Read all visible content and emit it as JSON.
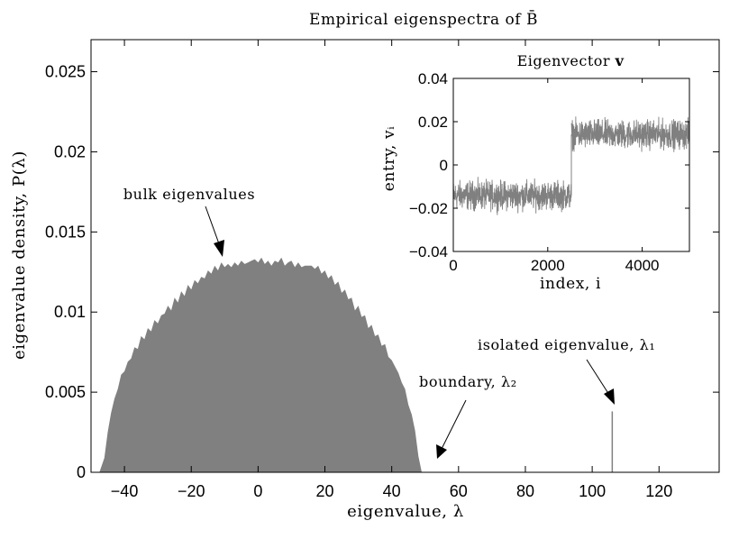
{
  "chart_data": [
    {
      "type": "area",
      "title": "Empirical eigenspectra of B̄",
      "xlabel": "eigenvalue, λ",
      "ylabel": "eigenvalue density,  P(λ)",
      "xlim": [
        -50,
        138
      ],
      "ylim": [
        0,
        0.027
      ],
      "xticks": [
        -40,
        -20,
        0,
        20,
        40,
        60,
        80,
        100,
        120
      ],
      "xtick_labels": [
        "−40",
        "−20",
        "0",
        "20",
        "40",
        "60",
        "80",
        "100",
        "120"
      ],
      "yticks": [
        0,
        0.005,
        0.01,
        0.015,
        0.02,
        0.025
      ],
      "ytick_labels": [
        "0",
        "0.005",
        "0.01",
        "0.015",
        "0.02",
        "0.025"
      ],
      "grid": false,
      "color": "#808080",
      "series": [
        {
          "x": [
            -47.5,
            -46,
            -45,
            -44,
            -43,
            -42,
            -41,
            -40,
            -39,
            -38,
            -37,
            -36,
            -35,
            -34,
            -33,
            -32,
            -31,
            -30,
            -29,
            -28,
            -27,
            -26,
            -25,
            -24,
            -23,
            -22,
            -21,
            -20,
            -19,
            -18,
            -17,
            -16,
            -15,
            -14,
            -13,
            -12,
            -11,
            -10,
            -9,
            -8,
            -7,
            -6,
            -5,
            -4,
            -3,
            -2,
            -1,
            0,
            1,
            2,
            3,
            4,
            5,
            6,
            7,
            8,
            9,
            10,
            11,
            12,
            13,
            14,
            15,
            16,
            17,
            18,
            19,
            20,
            21,
            22,
            23,
            24,
            25,
            26,
            27,
            28,
            29,
            30,
            31,
            32,
            33,
            34,
            35,
            36,
            37,
            38,
            39,
            40,
            41,
            42,
            43,
            44,
            45,
            46,
            47,
            48,
            49
          ],
          "y": [
            0,
            0.0009,
            0.0025,
            0.0037,
            0.0046,
            0.0052,
            0.0061,
            0.0063,
            0.0069,
            0.0071,
            0.0078,
            0.0077,
            0.0085,
            0.0083,
            0.009,
            0.0088,
            0.0095,
            0.0093,
            0.0098,
            0.0099,
            0.0104,
            0.0101,
            0.0109,
            0.0106,
            0.0113,
            0.011,
            0.0117,
            0.0114,
            0.012,
            0.0118,
            0.0122,
            0.0121,
            0.0126,
            0.0124,
            0.0129,
            0.0126,
            0.0131,
            0.0128,
            0.013,
            0.0128,
            0.0131,
            0.0129,
            0.0132,
            0.013,
            0.0131,
            0.0132,
            0.0133,
            0.0131,
            0.0134,
            0.013,
            0.0132,
            0.0129,
            0.0132,
            0.0131,
            0.0134,
            0.0129,
            0.0131,
            0.0132,
            0.0128,
            0.0131,
            0.0128,
            0.0129,
            0.0129,
            0.0129,
            0.0127,
            0.0129,
            0.0124,
            0.0126,
            0.0121,
            0.0123,
            0.0117,
            0.0119,
            0.0112,
            0.0114,
            0.0108,
            0.0109,
            0.0101,
            0.0104,
            0.0097,
            0.0098,
            0.009,
            0.0092,
            0.0085,
            0.0086,
            0.0079,
            0.008,
            0.0072,
            0.007,
            0.0066,
            0.0062,
            0.0056,
            0.0052,
            0.0042,
            0.0036,
            0.0026,
            0.001,
            0
          ]
        }
      ],
      "isolated_eigenvalue": {
        "x": 106,
        "height": 0.0038
      },
      "annotations": [
        {
          "text": "bulk eigenvalues",
          "points_to": [
            -12,
            0.0133
          ]
        },
        {
          "text": "boundary, λ₂",
          "points_to": [
            52,
            0.0008
          ]
        },
        {
          "text": "isolated eigenvalue, λ₁",
          "points_to": [
            106,
            0.0042
          ]
        }
      ]
    },
    {
      "type": "line",
      "title": "Eigenvector v",
      "title_plain": "Eigenvector ",
      "title_bold": "v",
      "xlabel": "index, i",
      "ylabel": "entry,  vᵢ",
      "xlim": [
        0,
        5000
      ],
      "ylim": [
        -0.04,
        0.04
      ],
      "xticks": [
        0,
        2000,
        4000
      ],
      "xtick_labels": [
        "0",
        "2000",
        "4000"
      ],
      "yticks": [
        -0.04,
        -0.02,
        0,
        0.02,
        0.04
      ],
      "ytick_labels": [
        "−0.04",
        "−0.02",
        "0",
        "0.02",
        "0.04"
      ],
      "color": "#808080",
      "series": [
        {
          "segments": [
            {
              "from": 0,
              "to": 2500,
              "mean": -0.0141,
              "spread": 0.012
            },
            {
              "from": 2500,
              "to": 5000,
              "mean": 0.0141,
              "spread": 0.012
            }
          ]
        }
      ]
    }
  ]
}
